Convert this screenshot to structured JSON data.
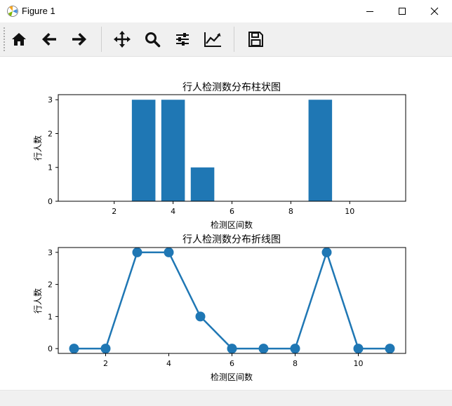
{
  "window": {
    "title": "Figure 1"
  },
  "toolbar": {
    "items": [
      {
        "name": "home-icon"
      },
      {
        "name": "back-arrow-icon"
      },
      {
        "name": "forward-arrow-icon"
      },
      {
        "name": "pan-icon"
      },
      {
        "name": "zoom-icon"
      },
      {
        "name": "subplots-config-icon"
      },
      {
        "name": "edit-axis-icon"
      },
      {
        "name": "save-icon"
      }
    ]
  },
  "chart_data": [
    {
      "type": "bar",
      "title": "行人检测数分布柱状图",
      "xlabel": "检测区间数",
      "ylabel": "行人数",
      "x": [
        1,
        2,
        3,
        4,
        5,
        6,
        7,
        8,
        9,
        10,
        11
      ],
      "values": [
        0,
        0,
        3,
        3,
        1,
        0,
        0,
        0,
        3,
        0,
        0
      ],
      "xlim": [
        0.1,
        11.9
      ],
      "ylim": [
        0,
        3.15
      ],
      "xticks": [
        "2",
        "4",
        "6",
        "8",
        "10"
      ],
      "yticks": [
        "0",
        "1",
        "2",
        "3"
      ],
      "color": "#1f77b4"
    },
    {
      "type": "line",
      "title": "行人检测数分布折线图",
      "xlabel": "检测区间数",
      "ylabel": "行人数",
      "x": [
        1,
        2,
        3,
        4,
        5,
        6,
        7,
        8,
        9,
        10,
        11
      ],
      "values": [
        0,
        0,
        3,
        3,
        1,
        0,
        0,
        0,
        3,
        0,
        0
      ],
      "xlim": [
        0.5,
        11.5
      ],
      "ylim": [
        -0.15,
        3.15
      ],
      "xticks": [
        "2",
        "4",
        "6",
        "8",
        "10"
      ],
      "yticks": [
        "0",
        "1",
        "2",
        "3"
      ],
      "marker": "circle",
      "color": "#1f77b4"
    }
  ]
}
